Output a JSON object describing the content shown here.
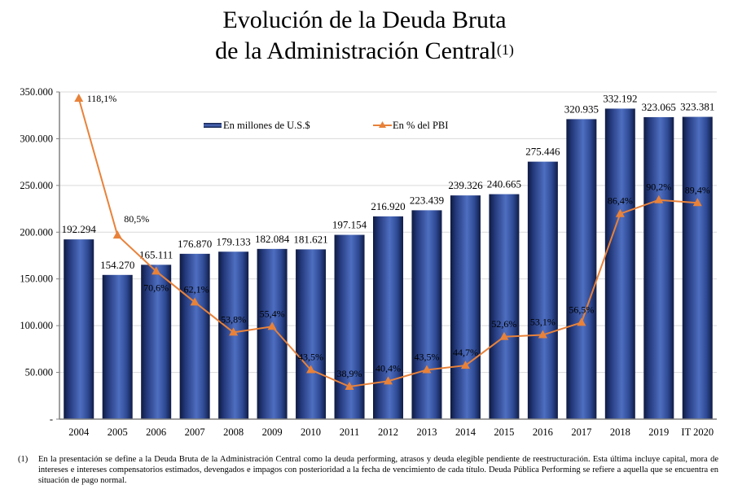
{
  "title": {
    "line1": "Evolución de la Deuda Bruta",
    "line2": "de la Administración Central",
    "superscript": "(1)"
  },
  "colors": {
    "bar": "#2E4A94",
    "bar_dark": "#0E1A40",
    "bar_light": "#4E6EC0",
    "line": "#E8823A",
    "grid": "#D9D9D9",
    "axis": "#808080"
  },
  "chart_data": {
    "type": "bar",
    "title": "Evolución de la Deuda Bruta de la Administración Central(1)",
    "xlabel": "",
    "ylabel": "",
    "categories": [
      "2004",
      "2005",
      "2006",
      "2007",
      "2008",
      "2009",
      "2010",
      "2011",
      "2012",
      "2013",
      "2014",
      "2015",
      "2016",
      "2017",
      "2018",
      "2019",
      "IT 2020"
    ],
    "series": [
      {
        "name": "En millones de U.S.$",
        "type": "bar",
        "axis": "primary",
        "values": [
          192294,
          154270,
          165111,
          176870,
          179133,
          182084,
          181621,
          197154,
          216920,
          223439,
          239326,
          240665,
          275446,
          320935,
          332192,
          323065,
          323381
        ],
        "labels": [
          "192.294",
          "154.270",
          "165.111",
          "176.870",
          "179.133",
          "182.084",
          "181.621",
          "197.154",
          "216.920",
          "223.439",
          "239.326",
          "240.665",
          "275.446",
          "320.935",
          "332.192",
          "323.065",
          "323.381"
        ]
      },
      {
        "name": "En % del PBI",
        "type": "line",
        "axis": "secondary",
        "marker": "triangle",
        "values": [
          118.1,
          80.5,
          70.6,
          62.1,
          53.8,
          55.4,
          43.5,
          38.9,
          40.4,
          43.5,
          44.7,
          52.6,
          53.1,
          56.5,
          86.4,
          90.2,
          89.4
        ],
        "labels": [
          "118,1%",
          "80,5%",
          "70,6%",
          "62,1%",
          "53,8%",
          "55,4%",
          "43,5%",
          "38,9%",
          "40,4%",
          "43,5%",
          "44,7%",
          "52,6%",
          "53,1%",
          "56,5%",
          "86,4%",
          "90,2%",
          "89,4%"
        ]
      }
    ],
    "ylim": [
      0,
      350000
    ],
    "y_ticks": [
      0,
      50000,
      100000,
      150000,
      200000,
      250000,
      300000,
      350000
    ],
    "y_tick_labels": [
      "-",
      "50.000",
      "100.000",
      "150.000",
      "200.000",
      "250.000",
      "300.000",
      "350.000"
    ],
    "secondary_ylim_hidden": true,
    "grid": true,
    "legend": {
      "placement": "top-center",
      "entries": [
        "En millones de U.S.$",
        "En % del PBI"
      ]
    }
  },
  "footnote": {
    "marker": "(1)",
    "text": "En la presentación se define a la Deuda Bruta de la Administración Central como la deuda performing, atrasos y deuda elegible pendiente de reestructuración. Esta última incluye capital, mora de intereses e intereses compensatorios estimados, devengados e impagos con posterioridad a la fecha de vencimiento de cada título. Deuda Pública Performing se refiere a aquella que se encuentra en situación de pago normal."
  }
}
